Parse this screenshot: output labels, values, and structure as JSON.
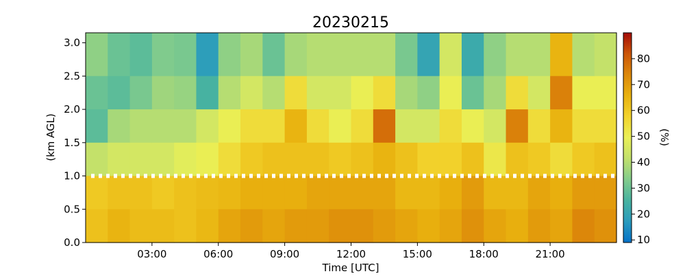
{
  "chart_data": {
    "type": "heatmap",
    "title": "20230215",
    "xlabel": "Time [UTC]",
    "ylabel": "(km AGL)",
    "colorbar_label": "(%)",
    "x_unit": "hours UTC",
    "xlim": [
      0,
      24
    ],
    "ylim": [
      0,
      3.15
    ],
    "clim": [
      9,
      90
    ],
    "x_ticks": [
      {
        "value": 3,
        "label": "03:00"
      },
      {
        "value": 6,
        "label": "06:00"
      },
      {
        "value": 9,
        "label": "09:00"
      },
      {
        "value": 12,
        "label": "12:00"
      },
      {
        "value": 15,
        "label": "15:00"
      },
      {
        "value": 18,
        "label": "18:00"
      },
      {
        "value": 21,
        "label": "21:00"
      }
    ],
    "y_ticks": [
      {
        "value": 0.0,
        "label": "0.0"
      },
      {
        "value": 0.5,
        "label": "0.5"
      },
      {
        "value": 1.0,
        "label": "1.0"
      },
      {
        "value": 1.5,
        "label": "1.5"
      },
      {
        "value": 2.0,
        "label": "2.0"
      },
      {
        "value": 2.5,
        "label": "2.5"
      },
      {
        "value": 3.0,
        "label": "3.0"
      }
    ],
    "colorbar_ticks": [
      {
        "value": 10,
        "label": "10"
      },
      {
        "value": 20,
        "label": "20"
      },
      {
        "value": 30,
        "label": "30"
      },
      {
        "value": 40,
        "label": "40"
      },
      {
        "value": 50,
        "label": "50"
      },
      {
        "value": 60,
        "label": "60"
      },
      {
        "value": 70,
        "label": "70"
      },
      {
        "value": 80,
        "label": "80"
      }
    ],
    "colormap": [
      "#0572c8",
      "#2a9bbd",
      "#48b3a0",
      "#82cc8c",
      "#c1e06c",
      "#eaf057",
      "#f2d32c",
      "#e8b10e",
      "#dc880a",
      "#cc5608",
      "#a40c08"
    ],
    "reference_line": {
      "y": 1.0,
      "style": "white dotted"
    },
    "rows_km": [
      2.5,
      2.0,
      1.5,
      1.0,
      0.5,
      0.0
    ],
    "columns": [
      {
        "t": 0.5,
        "v": [
          35,
          30,
          28,
          42,
          60,
          62
        ]
      },
      {
        "t": 1.5,
        "v": [
          30,
          28,
          38,
          45,
          62,
          65
        ]
      },
      {
        "t": 2.5,
        "v": [
          28,
          32,
          40,
          45,
          62,
          63
        ]
      },
      {
        "t": 3.5,
        "v": [
          33,
          37,
          40,
          45,
          60,
          63
        ]
      },
      {
        "t": 4.5,
        "v": [
          32,
          36,
          40,
          48,
          62,
          62
        ]
      },
      {
        "t": 5.5,
        "v": [
          18,
          25,
          45,
          50,
          63,
          64
        ]
      },
      {
        "t": 6.5,
        "v": [
          35,
          40,
          50,
          55,
          64,
          68
        ]
      },
      {
        "t": 7.5,
        "v": [
          38,
          45,
          55,
          60,
          66,
          70
        ]
      },
      {
        "t": 8.5,
        "v": [
          30,
          40,
          55,
          62,
          66,
          68
        ]
      },
      {
        "t": 9.5,
        "v": [
          38,
          55,
          65,
          62,
          66,
          70
        ]
      },
      {
        "t": 10.5,
        "v": [
          40,
          45,
          55,
          62,
          68,
          70
        ]
      },
      {
        "t": 11.5,
        "v": [
          40,
          45,
          50,
          60,
          68,
          72
        ]
      },
      {
        "t": 12.5,
        "v": [
          40,
          50,
          55,
          62,
          68,
          72
        ]
      },
      {
        "t": 13.5,
        "v": [
          40,
          55,
          78,
          65,
          68,
          70
        ]
      },
      {
        "t": 14.5,
        "v": [
          32,
          38,
          45,
          62,
          64,
          68
        ]
      },
      {
        "t": 15.5,
        "v": [
          20,
          35,
          45,
          58,
          64,
          66
        ]
      },
      {
        "t": 16.5,
        "v": [
          45,
          50,
          55,
          58,
          66,
          68
        ]
      },
      {
        "t": 17.5,
        "v": [
          22,
          30,
          50,
          62,
          70,
          72
        ]
      },
      {
        "t": 18.5,
        "v": [
          35,
          38,
          45,
          52,
          64,
          68
        ]
      },
      {
        "t": 19.5,
        "v": [
          40,
          55,
          75,
          62,
          64,
          66
        ]
      },
      {
        "t": 20.5,
        "v": [
          40,
          45,
          55,
          60,
          68,
          70
        ]
      },
      {
        "t": 21.5,
        "v": [
          65,
          75,
          65,
          55,
          66,
          68
        ]
      },
      {
        "t": 22.5,
        "v": [
          40,
          50,
          55,
          60,
          70,
          74
        ]
      },
      {
        "t": 23.5,
        "v": [
          42,
          50,
          55,
          62,
          70,
          72
        ]
      }
    ]
  }
}
